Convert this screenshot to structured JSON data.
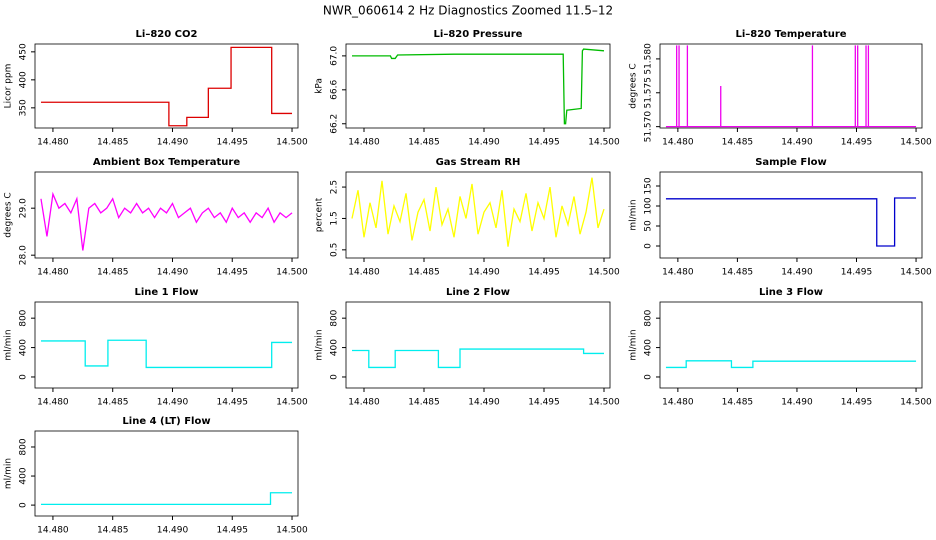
{
  "title": "NWR_060614  2 Hz Diagnostics Zoomed 11.5–12",
  "chart_data": [
    {
      "type": "line",
      "title": "Li–820 CO2",
      "ylabel": "Licor ppm",
      "color": "#dd0000",
      "x": [
        14.479,
        14.4897,
        14.4897,
        14.4912,
        14.4912,
        14.493,
        14.493,
        14.4949,
        14.4949,
        14.4983,
        14.4983,
        14.5
      ],
      "values": [
        360,
        360,
        318,
        318,
        333,
        333,
        385,
        385,
        458,
        458,
        340,
        340
      ],
      "xlim": [
        14.4785,
        14.5005
      ],
      "xticks": [
        {
          "value": 14.48,
          "label": "14.480"
        },
        14.485,
        {
          "value": 14.49,
          "label": "14.490"
        },
        14.495,
        {
          "value": 14.5,
          "label": "14.500"
        }
      ],
      "ylim": [
        314,
        464
      ],
      "yticks": [
        350,
        400,
        450
      ]
    },
    {
      "type": "line",
      "title": "Li–820 Pressure",
      "ylabel": "kPa",
      "color": "#00bb00",
      "x": [
        14.479,
        14.4822,
        14.4823,
        14.4826,
        14.4828,
        14.4875,
        14.4966,
        14.4967,
        14.4968,
        14.4969,
        14.4981,
        14.4982,
        14.4983,
        14.5
      ],
      "values": [
        67.0,
        67.0,
        66.97,
        66.97,
        67.01,
        67.02,
        67.02,
        66.2,
        66.2,
        66.36,
        66.38,
        67.06,
        67.08,
        67.06
      ],
      "xlim": [
        14.4785,
        14.5005
      ],
      "xticks": [
        {
          "value": 14.48,
          "label": "14.480"
        },
        14.485,
        {
          "value": 14.49,
          "label": "14.490"
        },
        14.495,
        {
          "value": 14.5,
          "label": "14.500"
        }
      ],
      "ylim": [
        66.15,
        67.14
      ],
      "yticks": [
        66.2,
        66.6,
        {
          "value": 67,
          "label": "67.0"
        }
      ]
    },
    {
      "type": "line",
      "title": "Li–820 Temperature",
      "ylabel": "degrees C",
      "color": "#ee00ee",
      "x": [
        14.479,
        14.4799,
        14.4799,
        14.4799,
        14.4801,
        14.4801,
        14.4801,
        14.4808,
        14.4808,
        14.4808,
        14.4836,
        14.4836,
        14.4836,
        14.4913,
        14.4913,
        14.4913,
        14.4949,
        14.4949,
        14.4949,
        14.4951,
        14.4951,
        14.4951,
        14.4958,
        14.4958,
        14.4958,
        14.496,
        14.496,
        14.496,
        14.5
      ],
      "values": [
        51.57,
        51.57,
        51.582,
        51.57,
        51.57,
        51.582,
        51.57,
        51.57,
        51.582,
        51.57,
        51.57,
        51.576,
        51.57,
        51.57,
        51.582,
        51.57,
        51.57,
        51.582,
        51.57,
        51.57,
        51.582,
        51.57,
        51.57,
        51.582,
        51.57,
        51.57,
        51.582,
        51.57,
        51.57
      ],
      "xlim": [
        14.4785,
        14.5005
      ],
      "xticks": [
        {
          "value": 14.48,
          "label": "14.480"
        },
        14.485,
        {
          "value": 14.49,
          "label": "14.490"
        },
        14.495,
        {
          "value": 14.5,
          "label": "14.500"
        }
      ],
      "ylim": [
        51.5698,
        51.5822
      ],
      "yticks": [
        {
          "value": 51.57,
          "label": "51.570"
        },
        51.575,
        {
          "value": 51.58,
          "label": "51.580"
        }
      ]
    },
    {
      "type": "line",
      "title": "Ambient Box Temperature",
      "ylabel": "degrees C",
      "color": "#ff00ff",
      "x": [
        14.479,
        14.4795,
        14.48,
        14.4805,
        14.481,
        14.4815,
        14.482,
        14.4825,
        14.483,
        14.4835,
        14.484,
        14.4845,
        14.485,
        14.4855,
        14.486,
        14.4865,
        14.487,
        14.4875,
        14.488,
        14.4885,
        14.489,
        14.4895,
        14.49,
        14.4905,
        14.491,
        14.4915,
        14.492,
        14.4925,
        14.493,
        14.4935,
        14.494,
        14.4945,
        14.495,
        14.4955,
        14.496,
        14.4965,
        14.497,
        14.4975,
        14.498,
        14.4985,
        14.499,
        14.4995,
        14.5
      ],
      "values": [
        29.2,
        28.4,
        29.3,
        29.0,
        29.1,
        28.9,
        29.2,
        28.1,
        29.0,
        29.1,
        28.9,
        29.0,
        29.2,
        28.8,
        29.0,
        28.9,
        29.1,
        28.9,
        29.0,
        28.8,
        29.0,
        28.9,
        29.1,
        28.8,
        28.9,
        29.0,
        28.7,
        28.9,
        29.0,
        28.8,
        28.9,
        28.7,
        29.0,
        28.8,
        28.9,
        28.7,
        28.9,
        28.8,
        29.0,
        28.7,
        28.9,
        28.8,
        28.9
      ],
      "xlim": [
        14.4785,
        14.5005
      ],
      "xticks": [
        {
          "value": 14.48,
          "label": "14.480"
        },
        14.485,
        {
          "value": 14.49,
          "label": "14.490"
        },
        14.495,
        {
          "value": 14.5,
          "label": "14.500"
        }
      ],
      "ylim": [
        27.94,
        29.77
      ],
      "yticks": [
        {
          "value": 28,
          "label": "28.0"
        },
        {
          "value": 29,
          "label": "29.0"
        }
      ]
    },
    {
      "type": "line",
      "title": "Gas Stream RH",
      "ylabel": "percent",
      "color": "#ffff00",
      "x": [
        14.479,
        14.4795,
        14.48,
        14.4805,
        14.481,
        14.4815,
        14.482,
        14.4825,
        14.483,
        14.4835,
        14.484,
        14.4845,
        14.485,
        14.4855,
        14.486,
        14.4865,
        14.487,
        14.4875,
        14.488,
        14.4885,
        14.489,
        14.4895,
        14.49,
        14.4905,
        14.491,
        14.4915,
        14.492,
        14.4925,
        14.493,
        14.4935,
        14.494,
        14.4945,
        14.495,
        14.4955,
        14.496,
        14.4965,
        14.497,
        14.4975,
        14.498,
        14.4985,
        14.499,
        14.4995,
        14.5
      ],
      "values": [
        1.5,
        2.4,
        0.9,
        2.0,
        1.2,
        2.7,
        1.0,
        1.9,
        1.4,
        2.3,
        0.8,
        1.7,
        2.1,
        1.1,
        2.5,
        1.3,
        1.8,
        0.9,
        2.2,
        1.5,
        2.6,
        1.0,
        1.7,
        2.0,
        1.2,
        2.4,
        0.6,
        1.8,
        1.4,
        2.3,
        1.1,
        2.0,
        1.5,
        2.5,
        0.9,
        1.9,
        1.3,
        2.2,
        1.0,
        1.7,
        2.8,
        1.2,
        1.8
      ],
      "xlim": [
        14.4785,
        14.5005
      ],
      "xticks": [
        {
          "value": 14.48,
          "label": "14.480"
        },
        14.485,
        {
          "value": 14.49,
          "label": "14.490"
        },
        14.495,
        {
          "value": 14.5,
          "label": "14.500"
        }
      ],
      "ylim": [
        0.24,
        2.98
      ],
      "yticks": [
        0.5,
        1.5,
        2.5
      ]
    },
    {
      "type": "line",
      "title": "Sample Flow",
      "ylabel": "ml/min",
      "color": "#0000cc",
      "x": [
        14.479,
        14.4967,
        14.4967,
        14.4982,
        14.4982,
        14.5
      ],
      "values": [
        118,
        118,
        0,
        0,
        120,
        120
      ],
      "xlim": [
        14.4785,
        14.5005
      ],
      "xticks": [
        {
          "value": 14.48,
          "label": "14.480"
        },
        14.485,
        {
          "value": 14.49,
          "label": "14.490"
        },
        14.495,
        {
          "value": 14.5,
          "label": "14.500"
        }
      ],
      "ylim": [
        -30,
        185
      ],
      "yticks": [
        0,
        50,
        100,
        150
      ]
    },
    {
      "type": "line",
      "title": "Line 1 Flow",
      "ylabel": "ml/min",
      "color": "#00eeee",
      "x": [
        14.479,
        14.4827,
        14.4827,
        14.4846,
        14.4846,
        14.4878,
        14.4878,
        14.4983,
        14.4983,
        14.5
      ],
      "values": [
        490,
        490,
        150,
        150,
        500,
        500,
        130,
        130,
        470,
        470
      ],
      "xlim": [
        14.4785,
        14.5005
      ],
      "xticks": [
        {
          "value": 14.48,
          "label": "14.480"
        },
        14.485,
        {
          "value": 14.49,
          "label": "14.490"
        },
        14.495,
        {
          "value": 14.5,
          "label": "14.500"
        }
      ],
      "ylim": [
        -150,
        1020
      ],
      "yticks": [
        0,
        400,
        800
      ]
    },
    {
      "type": "line",
      "title": "Line 2 Flow",
      "ylabel": "ml/min",
      "color": "#00eeee",
      "x": [
        14.479,
        14.4804,
        14.4804,
        14.4826,
        14.4826,
        14.4862,
        14.4862,
        14.488,
        14.488,
        14.4983,
        14.4983,
        14.5
      ],
      "values": [
        360,
        360,
        130,
        130,
        360,
        360,
        130,
        130,
        380,
        380,
        320,
        320
      ],
      "xlim": [
        14.4785,
        14.5005
      ],
      "xticks": [
        {
          "value": 14.48,
          "label": "14.480"
        },
        14.485,
        {
          "value": 14.49,
          "label": "14.490"
        },
        14.495,
        {
          "value": 14.5,
          "label": "14.500"
        }
      ],
      "ylim": [
        -150,
        1020
      ],
      "yticks": [
        0,
        400,
        800
      ]
    },
    {
      "type": "line",
      "title": "Line 3 Flow",
      "ylabel": "ml/min",
      "color": "#00eeee",
      "x": [
        14.479,
        14.4807,
        14.4807,
        14.4845,
        14.4845,
        14.4863,
        14.4863,
        14.5
      ],
      "values": [
        130,
        130,
        220,
        220,
        130,
        130,
        215,
        215
      ],
      "xlim": [
        14.4785,
        14.5005
      ],
      "xticks": [
        {
          "value": 14.48,
          "label": "14.480"
        },
        14.485,
        {
          "value": 14.49,
          "label": "14.490"
        },
        14.495,
        {
          "value": 14.5,
          "label": "14.500"
        }
      ],
      "ylim": [
        -150,
        1020
      ],
      "yticks": [
        0,
        400,
        800
      ]
    },
    {
      "type": "line",
      "title": "Line 4 (LT) Flow",
      "ylabel": "ml/min",
      "color": "#00eeee",
      "x": [
        14.479,
        14.4982,
        14.4982,
        14.5
      ],
      "values": [
        10,
        10,
        170,
        170
      ],
      "xlim": [
        14.4785,
        14.5005
      ],
      "xticks": [
        {
          "value": 14.48,
          "label": "14.480"
        },
        14.485,
        {
          "value": 14.49,
          "label": "14.490"
        },
        14.495,
        {
          "value": 14.5,
          "label": "14.500"
        }
      ],
      "ylim": [
        -150,
        1020
      ],
      "yticks": [
        0,
        400,
        800
      ]
    }
  ]
}
